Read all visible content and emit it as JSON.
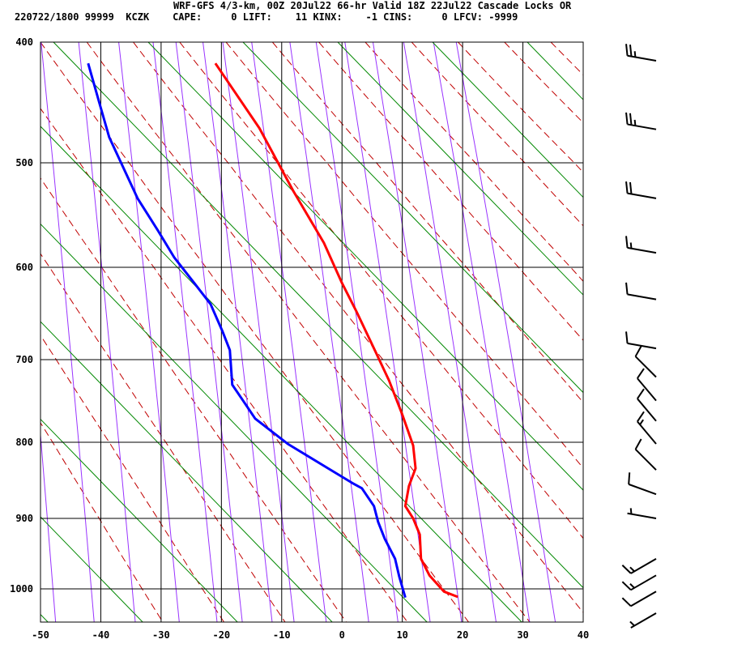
{
  "chart_data": {
    "type": "line",
    "title": "WRF-GFS 4/3-km, 00Z 20Jul22 66-hr Valid 18Z 22Jul22 Cascade Locks OR",
    "subtitle": "220722/1800 99999  KCZK    CAPE:     0 LIFT:    11 KINX:    -1 CINS:     0 LFCV: -9999",
    "xlabel": "",
    "ylabel": "",
    "xlim": [
      -50,
      40
    ],
    "ylim": [
      1050,
      400
    ],
    "x_ticks": [
      -50,
      -40,
      -30,
      -20,
      -10,
      0,
      10,
      20,
      30,
      40
    ],
    "y_ticks": [
      400,
      500,
      600,
      700,
      800,
      900,
      1000
    ],
    "grid": true,
    "colors": {
      "temperature": "#ff0000",
      "dewpoint": "#0000ff",
      "dry_adiabat": "#c00000",
      "mixing_ratio": "#9933ff",
      "diagonal": "#008800",
      "grid": "#000000"
    },
    "series": [
      {
        "key": "temperature",
        "pressure": [
          416,
          469,
          525,
          575,
          616,
          646,
          687,
          724,
          765,
          804,
          833,
          856,
          883,
          900,
          922,
          956,
          980,
          1004,
          1012
        ],
        "values": [
          -21.0,
          -13.7,
          -8.1,
          -3.0,
          0.0,
          2.4,
          5.3,
          7.8,
          10.0,
          11.8,
          12.2,
          11.1,
          10.5,
          11.8,
          12.9,
          13.1,
          14.5,
          16.9,
          19.2
        ]
      },
      {
        "key": "dewpoint",
        "pressure": [
          416,
          450,
          477,
          532,
          563,
          590,
          616,
          638,
          668,
          689,
          729,
          748,
          770,
          802,
          833,
          852,
          859,
          883,
          905,
          928,
          956,
          982,
          1013
        ],
        "values": [
          -42.1,
          -40.1,
          -38.6,
          -33.9,
          -30.5,
          -27.8,
          -24.5,
          -21.8,
          -19.8,
          -18.6,
          -18.2,
          -16.4,
          -14.4,
          -9.0,
          -2.3,
          1.7,
          3.3,
          5.3,
          6.0,
          7.1,
          8.8,
          9.5,
          10.5
        ]
      }
    ],
    "wind_barbs": [
      {
        "pressure": 414,
        "dir": 280,
        "speed": 25
      },
      {
        "pressure": 470,
        "dir": 280,
        "speed": 25
      },
      {
        "pressure": 532,
        "dir": 280,
        "speed": 20
      },
      {
        "pressure": 585,
        "dir": 280,
        "speed": 15
      },
      {
        "pressure": 633,
        "dir": 280,
        "speed": 10
      },
      {
        "pressure": 687,
        "dir": 280,
        "speed": 10
      },
      {
        "pressure": 720,
        "dir": 315,
        "speed": 10
      },
      {
        "pressure": 748,
        "dir": 320,
        "speed": 10
      },
      {
        "pressure": 773,
        "dir": 320,
        "speed": 10
      },
      {
        "pressure": 802,
        "dir": 320,
        "speed": 15
      },
      {
        "pressure": 835,
        "dir": 315,
        "speed": 10
      },
      {
        "pressure": 867,
        "dir": 290,
        "speed": 10
      },
      {
        "pressure": 900,
        "dir": 280,
        "speed": 5
      },
      {
        "pressure": 956,
        "dir": 240,
        "speed": 15
      },
      {
        "pressure": 980,
        "dir": 240,
        "speed": 15
      },
      {
        "pressure": 1004,
        "dir": 240,
        "speed": 10
      },
      {
        "pressure": 1037,
        "dir": 240,
        "speed": 5
      }
    ]
  }
}
